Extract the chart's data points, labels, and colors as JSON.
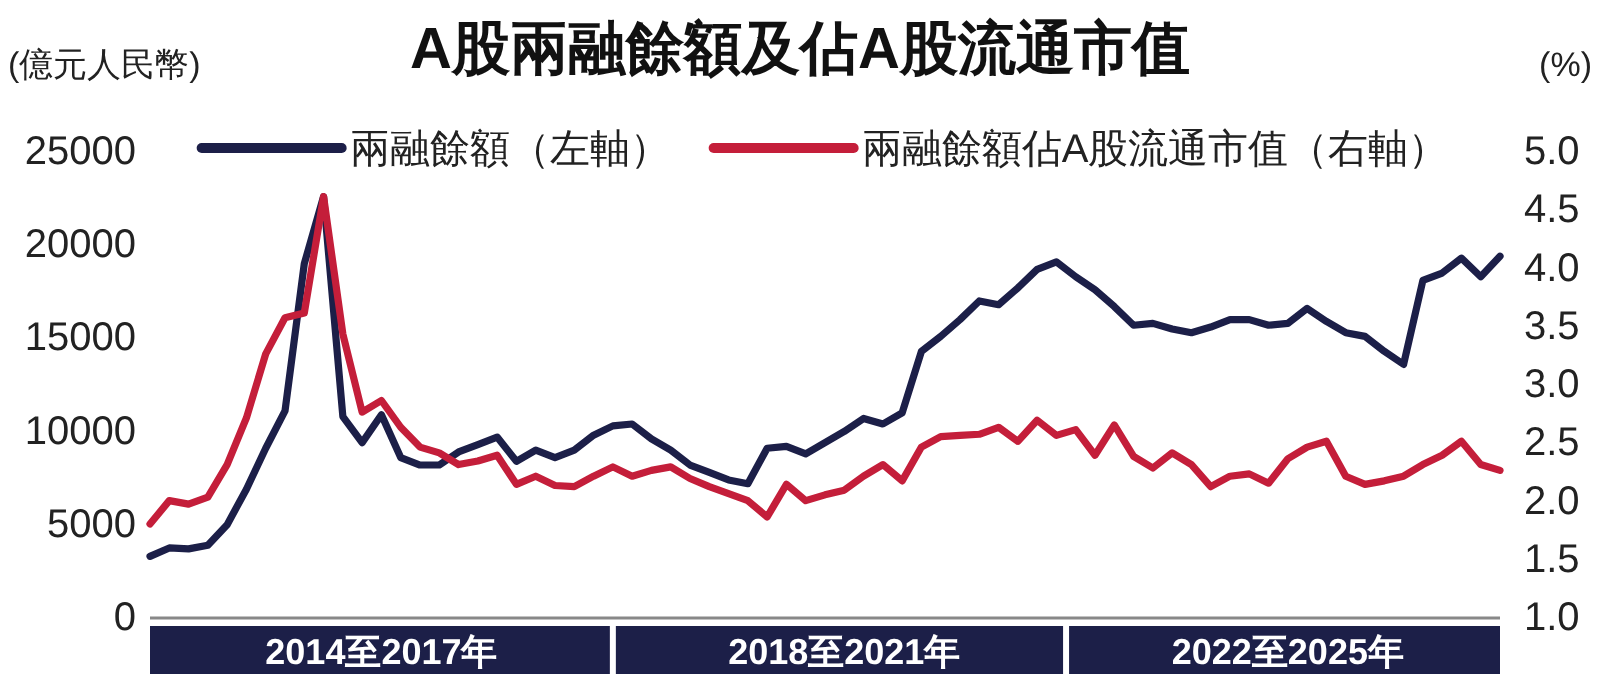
{
  "chart_data": {
    "type": "line",
    "title": "A股兩融餘額及佔A股流通市值",
    "ylabel": "(億元人民幣)",
    "y2label": "(%)",
    "legend": "top",
    "grid": false,
    "categories": [
      null,
      null,
      null,
      null,
      null,
      null,
      null,
      null,
      null,
      null,
      null,
      null,
      "2014至2017年",
      null,
      null,
      null,
      null,
      null,
      null,
      null,
      null,
      null,
      null,
      null,
      null,
      null,
      null,
      null,
      null,
      null,
      null,
      null,
      null,
      null,
      null,
      null,
      "2018至2021年",
      null,
      null,
      null,
      null,
      null,
      null,
      null,
      null,
      null,
      null,
      null,
      null,
      null,
      null,
      null,
      null,
      null,
      null,
      null,
      null,
      null,
      null,
      "2022至2025年",
      null,
      null,
      null,
      null,
      null,
      null,
      null,
      null,
      null,
      null,
      null
    ],
    "ylim": [
      0,
      25000
    ],
    "yticks": [
      0,
      5000,
      10000,
      15000,
      20000,
      25000
    ],
    "y2lim": [
      1,
      5
    ],
    "y2ticks": [
      {
        "value": 1,
        "label": "1.0"
      },
      {
        "value": 1.5,
        "label": "1.5"
      },
      {
        "value": 2,
        "label": "2.0"
      },
      {
        "value": 2.5,
        "label": "2.5"
      },
      {
        "value": 3,
        "label": "3.0"
      },
      {
        "value": 3.5,
        "label": "3.5"
      },
      {
        "value": 4,
        "label": "4.0"
      },
      {
        "value": 4.5,
        "label": "4.5"
      },
      {
        "value": 5,
        "label": "5.0"
      }
    ],
    "series": [
      {
        "name": "兩融餘額（左軸）",
        "color": "#1c1f48",
        "values": [
          3200,
          3650,
          3600,
          3800,
          4900,
          6800,
          9000,
          11000,
          18900,
          22500,
          10700,
          9300,
          10800,
          8500,
          8100,
          8100,
          8800,
          9200,
          9600,
          8300,
          8900,
          8500,
          8900,
          9700,
          10200,
          10300,
          9500,
          8900,
          8100,
          7700,
          7300,
          7100,
          9000,
          9100,
          8700,
          9300,
          9900,
          10600,
          10300,
          10900,
          14200,
          15000,
          15900,
          16900,
          16700,
          17600,
          18600,
          19000,
          18200,
          17500,
          16600,
          15600,
          15700,
          15400,
          15200,
          15500,
          15900,
          15900,
          15600,
          15700,
          16500,
          15800,
          15200,
          15000,
          14200,
          13500,
          18000,
          18400,
          19200,
          18200,
          19300
        ]
      },
      {
        "name": "兩融餘額佔A股流通市值（右軸）",
        "color": "#c41e3a",
        "axis": "y2",
        "values": [
          1.79,
          1.99,
          1.96,
          2.02,
          2.3,
          2.7,
          3.25,
          3.56,
          3.6,
          4.6,
          3.42,
          2.75,
          2.85,
          2.62,
          2.45,
          2.4,
          2.3,
          2.33,
          2.38,
          2.13,
          2.2,
          2.12,
          2.11,
          2.2,
          2.28,
          2.2,
          2.25,
          2.28,
          2.18,
          2.11,
          2.05,
          1.99,
          1.85,
          2.13,
          1.99,
          2.04,
          2.08,
          2.2,
          2.3,
          2.16,
          2.45,
          2.54,
          2.55,
          2.56,
          2.62,
          2.5,
          2.68,
          2.55,
          2.6,
          2.38,
          2.64,
          2.37,
          2.27,
          2.4,
          2.3,
          2.11,
          2.2,
          2.22,
          2.14,
          2.35,
          2.45,
          2.5,
          2.2,
          2.13,
          2.16,
          2.2,
          2.3,
          2.38,
          2.5,
          2.3,
          2.25
        ]
      }
    ]
  }
}
